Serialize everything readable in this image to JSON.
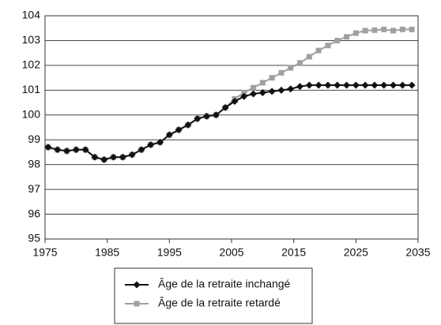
{
  "chart_data": {
    "type": "line",
    "x": [
      1975.5,
      1977,
      1978.5,
      1980,
      1981.5,
      1983,
      1984.5,
      1986,
      1987.5,
      1989,
      1990.5,
      1992,
      1993.5,
      1995,
      1996.5,
      1998,
      1999.5,
      2001,
      2002.5,
      2004,
      2005.5,
      2007,
      2008.5,
      2010,
      2011.5,
      2013,
      2014.5,
      2016,
      2017.5,
      2019,
      2020.5,
      2022,
      2023.5,
      2025,
      2026.5,
      2028,
      2029.5,
      2031,
      2032.5,
      2034
    ],
    "series": [
      {
        "name": "Âge de la retraite retardé",
        "color": "#a0a0a0",
        "marker": "square",
        "values": [
          98.7,
          98.6,
          98.55,
          98.6,
          98.6,
          98.3,
          98.2,
          98.3,
          98.3,
          98.4,
          98.6,
          98.8,
          98.9,
          99.2,
          99.4,
          99.6,
          99.85,
          99.95,
          100.0,
          100.3,
          100.65,
          100.9,
          101.1,
          101.3,
          101.5,
          101.7,
          101.9,
          102.1,
          102.35,
          102.6,
          102.8,
          103.0,
          103.15,
          103.3,
          103.4,
          103.42,
          103.45,
          103.4,
          103.45,
          103.45
        ]
      },
      {
        "name": "Âge de la retraite inchangé",
        "color": "#111111",
        "marker": "diamond",
        "values": [
          98.7,
          98.6,
          98.55,
          98.6,
          98.6,
          98.3,
          98.2,
          98.3,
          98.3,
          98.4,
          98.6,
          98.8,
          98.9,
          99.2,
          99.4,
          99.6,
          99.85,
          99.95,
          100.0,
          100.3,
          100.55,
          100.75,
          100.85,
          100.9,
          100.95,
          101.0,
          101.05,
          101.15,
          101.2,
          101.2,
          101.2,
          101.2,
          101.2,
          101.2,
          101.2,
          101.2,
          101.2,
          101.2,
          101.2,
          101.2
        ]
      }
    ],
    "legend_order": [
      1,
      0
    ],
    "xlim": [
      1975,
      2035
    ],
    "xticks": [
      1975,
      1985,
      1995,
      2005,
      2015,
      2025,
      2035
    ],
    "ylim": [
      95,
      104
    ],
    "yticks": [
      95,
      96,
      97,
      98,
      99,
      100,
      101,
      102,
      103,
      104
    ],
    "grid": true
  }
}
